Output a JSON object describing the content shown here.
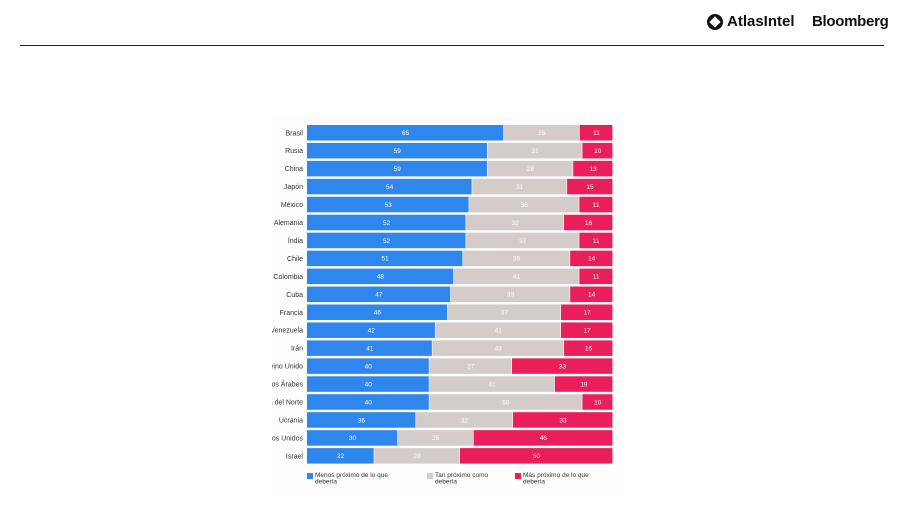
{
  "header": {
    "brand_1": "AtlasIntel",
    "brand_2": "Bloomberg"
  },
  "chart_data": {
    "type": "bar",
    "orientation": "horizontal",
    "stacked": true,
    "categories": [
      "Brasil",
      "Rusia",
      "China",
      "Japón",
      "México",
      "Alemania",
      "Índia",
      "Chile",
      "Colombia",
      "Cuba",
      "Francia",
      "Venezuela",
      "Irán",
      "Reino Unido",
      "Emiratos Árabes",
      "Corea del Norte",
      "Ucrania",
      "Estados Unidos",
      "Israel"
    ],
    "series": [
      {
        "name": "Menos próximo de lo que debería",
        "color": "#2f86ec",
        "values": [
          65,
          59,
          59,
          54,
          53,
          52,
          52,
          51,
          48,
          47,
          46,
          42,
          41,
          40,
          40,
          40,
          36,
          30,
          22
        ]
      },
      {
        "name": "Tan próximo como debería",
        "color": "#d4ccc8",
        "values": [
          25,
          31,
          28,
          31,
          36,
          32,
          37,
          35,
          41,
          39,
          37,
          41,
          43,
          27,
          41,
          50,
          32,
          25,
          28
        ]
      },
      {
        "name": "Más próximo de lo que debería",
        "color": "#e91e5a",
        "values": [
          11,
          10,
          13,
          15,
          11,
          16,
          11,
          14,
          11,
          14,
          17,
          17,
          16,
          33,
          19,
          10,
          33,
          46,
          50
        ]
      }
    ],
    "legend": "bottom",
    "grid": false,
    "data_labels": true
  }
}
